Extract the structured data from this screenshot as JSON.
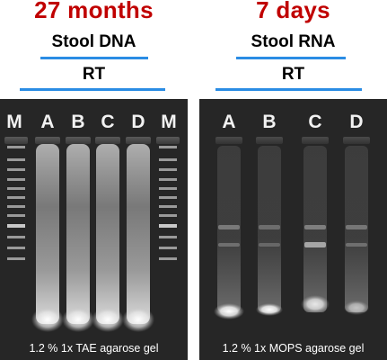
{
  "left_panel": {
    "duration": "27 months",
    "sample": "Stool DNA",
    "method": "RT",
    "lanes": [
      "M",
      "A",
      "B",
      "C",
      "D",
      "M"
    ],
    "caption": "1.2 % 1x TAE agarose gel"
  },
  "right_panel": {
    "duration": "7 days",
    "sample": "Stool RNA",
    "method": "RT",
    "lanes": [
      "A",
      "B",
      "C",
      "D"
    ],
    "caption": "1.2 % 1x MOPS agarose gel"
  },
  "colors": {
    "duration_text": "#c00000",
    "rule": "#2a8ce4",
    "gel_background": "#262626"
  }
}
